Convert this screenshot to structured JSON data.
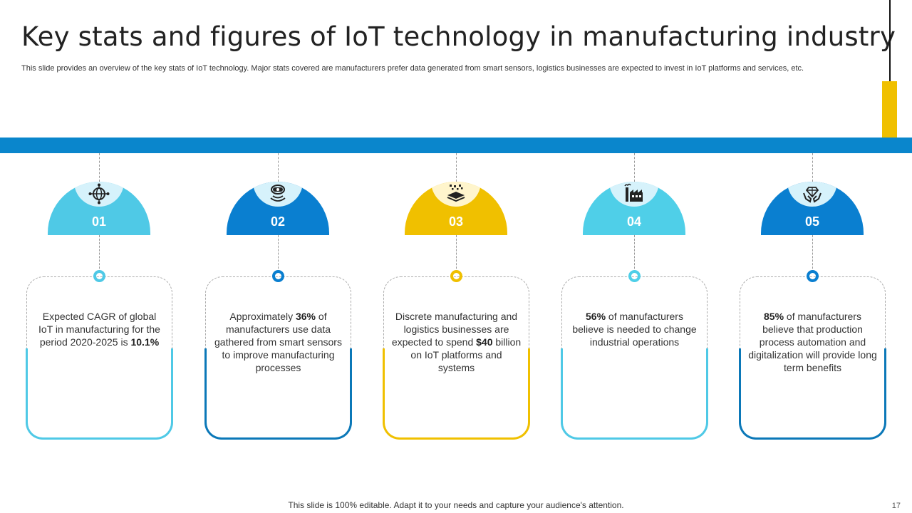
{
  "slide": {
    "title": "Key stats and figures of IoT technology in manufacturing industry",
    "subtitle": "This slide provides an overview of the key stats of IoT technology. Major stats covered are manufacturers prefer data generated from smart sensors, logistics businesses are expected to invest in IoT platforms and services, etc.",
    "footer": "This slide is 100% editable. Adapt it to your needs and capture your audience's attention.",
    "page_number": "17"
  },
  "colors": {
    "band": "#0a86cc",
    "accent_yellow": "#f0c000"
  },
  "stats": [
    {
      "number": "01",
      "icon": "globe-network-icon",
      "color": "#4fc9e6",
      "inner_color": "#d6f2fb",
      "line_color": "#4fc9e6",
      "text_pre": "Expected CAGR of global IoT in manufacturing for the period 2020-2025 is",
      "highlight": "10.1%",
      "text_post": ""
    },
    {
      "number": "02",
      "icon": "smart-sensor-icon",
      "color": "#0a7fd0",
      "inner_color": "#d6f2fb",
      "line_color": "#0b78b8",
      "text_pre": "Approximately",
      "highlight": "36%",
      "text_post": "of manufacturers use data gathered from smart sensors to improve manufacturing processes"
    },
    {
      "number": "03",
      "icon": "platform-layers-icon",
      "color": "#f0c000",
      "inner_color": "#fff5cc",
      "line_color": "#f0c000",
      "text_pre": "Discrete manufacturing and logistics businesses are expected to spend",
      "highlight": "$40",
      "text_post": "billion on IoT platforms and systems"
    },
    {
      "number": "04",
      "icon": "factory-icon",
      "color": "#4fcfe8",
      "inner_color": "#d6f2fb",
      "line_color": "#4fc9e6",
      "text_pre": "",
      "highlight": "56%",
      "text_post": "of manufacturers believe is needed to change industrial operations"
    },
    {
      "number": "05",
      "icon": "hands-gem-icon",
      "color": "#0a7fd0",
      "inner_color": "#d6f2fb",
      "line_color": "#0b78b8",
      "text_pre": "",
      "highlight": "85%",
      "text_post": "of manufacturers believe that production process automation and digitalization will provide long term benefits"
    }
  ]
}
